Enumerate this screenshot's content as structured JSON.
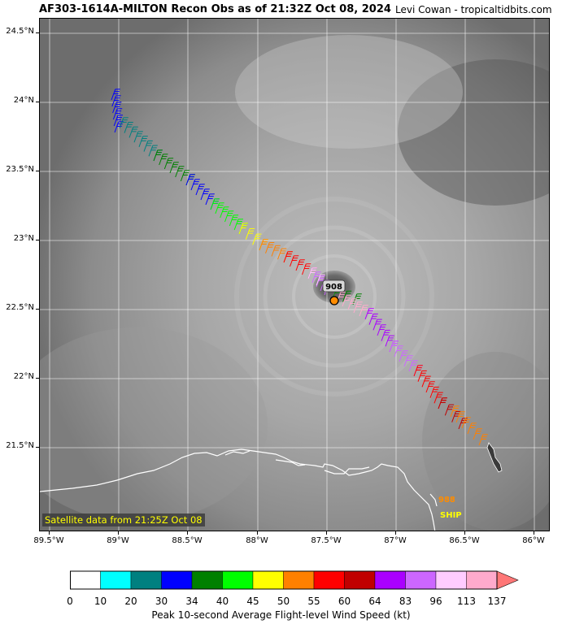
{
  "header": {
    "title": "AF303-1614A-MILTON Recon Obs as of 21:32Z Oct 08, 2024",
    "credit": "Levi Cowan - tropicaltidbits.com"
  },
  "map": {
    "satellite_label": "Satellite data from 21:25Z Oct 08",
    "lat_labels": [
      "24.5°N",
      "24°N",
      "23.5°N",
      "23°N",
      "22.5°N",
      "22°N",
      "21.5°N"
    ],
    "lon_labels": [
      "89.5°W",
      "89°W",
      "88.5°W",
      "88°W",
      "87.5°W",
      "87°W",
      "86.5°W",
      "86°W"
    ],
    "center_pressure_label": "908",
    "ship_pressure_label": "988",
    "ship_label": "SHIP",
    "colors": {
      "coastline": "#ffffff",
      "center_marker": "#ff8c00",
      "ship_pressure": "#ff8c00",
      "ship_text": "#ffff00",
      "satellite_label": "#ffff00"
    }
  },
  "colorbar": {
    "ticks": [
      "0",
      "10",
      "20",
      "30",
      "34",
      "40",
      "45",
      "50",
      "55",
      "60",
      "64",
      "83",
      "96",
      "113",
      "137"
    ],
    "colors": [
      "#ffffff",
      "#00ffff",
      "#008080",
      "#0000ff",
      "#008000",
      "#00ff00",
      "#ffff00",
      "#ff8000",
      "#ff0000",
      "#c00000",
      "#aa00ff",
      "#cc66ff",
      "#ffccff",
      "#ffaacc",
      "#ff7777"
    ],
    "label": "Peak 10-second Average Flight-level Wind Speed (kt)"
  }
}
